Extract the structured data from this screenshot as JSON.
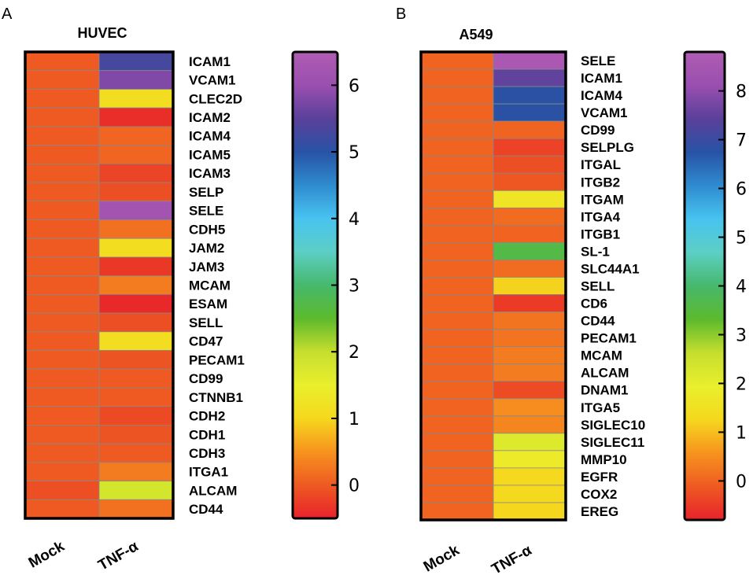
{
  "colors": {
    "scale": [
      "#e8222b",
      "#ee5a22",
      "#f7931e",
      "#f5d81e",
      "#e9ef2c",
      "#c6de2e",
      "#5cba2c",
      "#47b86c",
      "#5ccfc4",
      "#48c3f0",
      "#2f8bcf",
      "#2753a5",
      "#5a409a",
      "#9a4fb0",
      "#b05cb2"
    ],
    "frame": "#000000",
    "cell_border": "#888888"
  },
  "chart_data": [
    {
      "type": "heatmap",
      "panel_label": "A",
      "title": "HUVEC",
      "columns": [
        "Mock",
        "TNF-α"
      ],
      "rows": [
        "ICAM1",
        "VCAM1",
        "CLEC2D",
        "ICAM2",
        "ICAM4",
        "ICAM5",
        "ICAM3",
        "SELP",
        "SELE",
        "CDH5",
        "JAM2",
        "JAM3",
        "MCAM",
        "ESAM",
        "SELL",
        "CD47",
        "PECAM1",
        "CD99",
        "CTNNB1",
        "CDH2",
        "CDH1",
        "CDH3",
        "ITGA1",
        "ALCAM",
        "CD44"
      ],
      "values": [
        [
          0,
          5.3
        ],
        [
          0,
          5.8
        ],
        [
          0,
          1.1
        ],
        [
          0,
          -0.4
        ],
        [
          0,
          0.1
        ],
        [
          0,
          0.1
        ],
        [
          0,
          -0.2
        ],
        [
          0,
          -0.1
        ],
        [
          0,
          6.2
        ],
        [
          0,
          0.2
        ],
        [
          0,
          1.1
        ],
        [
          0,
          -0.3
        ],
        [
          0,
          0.3
        ],
        [
          0,
          -0.45
        ],
        [
          0,
          -0.1
        ],
        [
          0,
          1.1
        ],
        [
          0,
          -0.05
        ],
        [
          0,
          0
        ],
        [
          0,
          0
        ],
        [
          0,
          -0.15
        ],
        [
          0,
          -0.05
        ],
        [
          0,
          0
        ],
        [
          0,
          0.3
        ],
        [
          -0.1,
          1.8
        ],
        [
          0,
          0.2
        ]
      ],
      "colorbar": {
        "range": [
          -0.5,
          6.5
        ],
        "ticks": [
          0,
          1,
          2,
          3,
          4,
          5,
          6
        ],
        "tick_labels": [
          "0",
          "1",
          "2",
          "3",
          "4",
          "5",
          "6"
        ]
      }
    },
    {
      "type": "heatmap",
      "panel_label": "B",
      "title": "A549",
      "columns": [
        "Mock",
        "TNF-α"
      ],
      "rows": [
        "SELE",
        "ICAM1",
        "ICAM4",
        "VCAM1",
        "CD99",
        "SELPLG",
        "ITGAL",
        "ITGB2",
        "ITGAM",
        "ITGA4",
        "ITGB1",
        "SL-1",
        "SLC44A1",
        "SELL",
        "CD6",
        "CD44",
        "PECAM1",
        "MCAM",
        "ALCAM",
        "DNAM1",
        "ITGA5",
        "SIGLEC10",
        "SIGLEC11",
        "MMP10",
        "EGFR",
        "COX2",
        "EREG"
      ],
      "values": [
        [
          0,
          8.6
        ],
        [
          0,
          7.5
        ],
        [
          0,
          6.8
        ],
        [
          0,
          6.8
        ],
        [
          0,
          0
        ],
        [
          0,
          -0.4
        ],
        [
          0,
          -0.25
        ],
        [
          0,
          -0.15
        ],
        [
          0,
          1.6
        ],
        [
          0,
          0.1
        ],
        [
          0,
          0
        ],
        [
          0,
          3.6
        ],
        [
          0,
          0.1
        ],
        [
          0,
          1.2
        ],
        [
          0,
          -0.5
        ],
        [
          0,
          0.2
        ],
        [
          0,
          0.2
        ],
        [
          0,
          0.3
        ],
        [
          0,
          0.3
        ],
        [
          0,
          -0.3
        ],
        [
          0,
          0.5
        ],
        [
          0,
          0.4
        ],
        [
          0,
          2.2
        ],
        [
          0,
          1.8
        ],
        [
          0,
          1.3
        ],
        [
          0,
          1.3
        ],
        [
          0,
          1.25
        ]
      ],
      "colorbar": {
        "range": [
          -0.8,
          8.8
        ],
        "ticks": [
          0,
          1,
          2,
          3,
          4,
          5,
          6,
          7,
          8
        ],
        "tick_labels": [
          "0",
          "1",
          "2",
          "3",
          "4",
          "5",
          "6",
          "7",
          "8"
        ]
      }
    }
  ]
}
